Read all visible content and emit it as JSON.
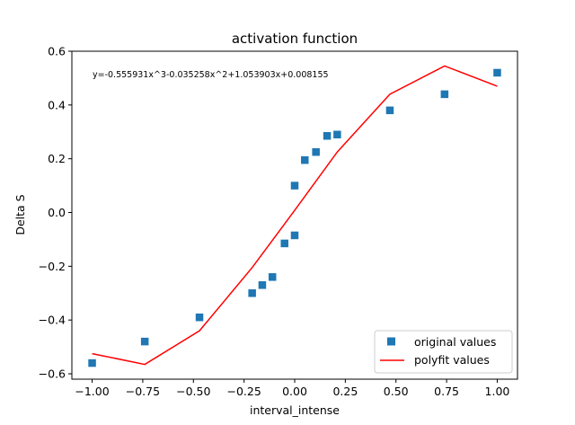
{
  "chart_data": {
    "type": "scatter",
    "title": "activation function",
    "xlabel": "interval_intense",
    "ylabel": "Delta S",
    "xlim": [
      -1.1,
      1.1
    ],
    "ylim": [
      -0.62,
      0.6
    ],
    "xticks": [
      -1.0,
      -0.75,
      -0.5,
      -0.25,
      0.0,
      0.25,
      0.5,
      0.75,
      1.0
    ],
    "xtick_labels": [
      "−1.00",
      "−0.75",
      "−0.50",
      "−0.25",
      "0.00",
      "0.25",
      "0.50",
      "0.75",
      "1.00"
    ],
    "yticks": [
      -0.6,
      -0.4,
      -0.2,
      0.0,
      0.2,
      0.4,
      0.6
    ],
    "ytick_labels": [
      "−0.6",
      "−0.4",
      "−0.2",
      "0.0",
      "0.2",
      "0.4",
      "0.6"
    ],
    "grid": false,
    "annotation": "y=-0.555931x^3-0.035258x^2+1.053903x+0.008155",
    "legend_position": "lower right",
    "series": [
      {
        "name": "original values",
        "kind": "scatter",
        "marker": "square",
        "color": "#1f77b4",
        "points": [
          [
            -1.0,
            -0.56
          ],
          [
            -0.74,
            -0.48
          ],
          [
            -0.47,
            -0.39
          ],
          [
            -0.21,
            -0.3
          ],
          [
            -0.16,
            -0.27
          ],
          [
            -0.11,
            -0.24
          ],
          [
            -0.05,
            -0.115
          ],
          [
            0.0,
            -0.085
          ],
          [
            0.0,
            0.1
          ],
          [
            0.05,
            0.195
          ],
          [
            0.105,
            0.225
          ],
          [
            0.16,
            0.285
          ],
          [
            0.21,
            0.29
          ],
          [
            0.47,
            0.38
          ],
          [
            0.74,
            0.44
          ],
          [
            1.0,
            0.52
          ]
        ]
      },
      {
        "name": "polyfit values",
        "kind": "line",
        "color": "#ff0000",
        "points": [
          [
            -1.0,
            -0.525
          ],
          [
            -0.74,
            -0.565
          ],
          [
            -0.47,
            -0.44
          ],
          [
            -0.21,
            -0.205
          ],
          [
            0.0,
            0.008
          ],
          [
            0.21,
            0.225
          ],
          [
            0.47,
            0.44
          ],
          [
            0.74,
            0.545
          ],
          [
            1.0,
            0.47
          ]
        ]
      }
    ]
  }
}
